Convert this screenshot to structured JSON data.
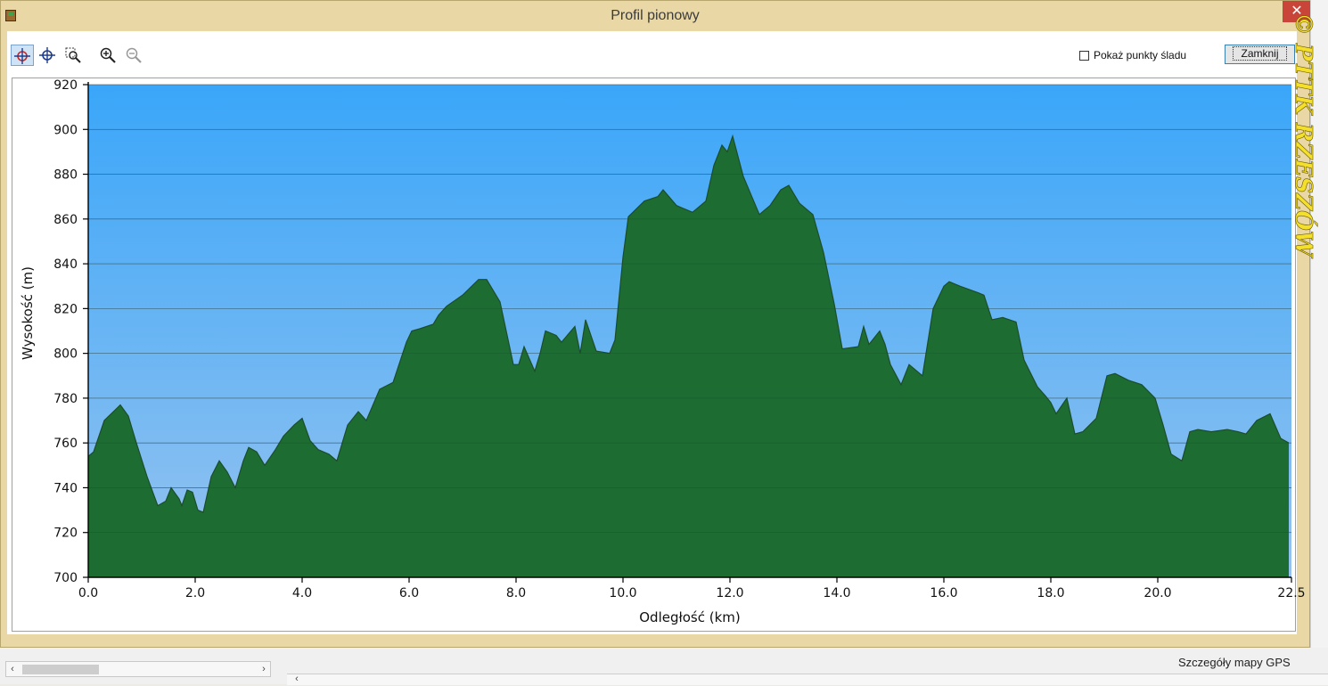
{
  "window": {
    "title": "Profil pionowy",
    "close_glyph": "✕"
  },
  "toolbar": {
    "tools": [
      {
        "name": "crosshair-active-icon",
        "active": true
      },
      {
        "name": "crosshair-icon",
        "active": false
      },
      {
        "name": "zoom-region-icon",
        "active": false
      },
      {
        "name": "zoom-in-icon",
        "active": false
      },
      {
        "name": "zoom-out-icon",
        "active": false
      }
    ],
    "show_track_points_label": "Pokaż punkty śladu",
    "show_track_points_checked": false,
    "close_label": "Zamknij"
  },
  "watermark": {
    "text": "© PTTK RZESZÓW"
  },
  "status": {
    "text": "Szczegóły mapy GPS"
  },
  "scrollbar": {
    "left_arrow": "‹",
    "right_arrow": "›",
    "bottom_left_arrow": "‹"
  },
  "chart_data": {
    "type": "area",
    "xlabel": "Odległość   (km)",
    "ylabel": "Wysokość (m)",
    "xlim": [
      0,
      22.5
    ],
    "ylim": [
      700,
      920
    ],
    "x_ticks": [
      "0.0",
      "2.0",
      "4.0",
      "6.0",
      "8.0",
      "10.0",
      "12.0",
      "14.0",
      "16.0",
      "18.0",
      "20.0",
      "22.5"
    ],
    "y_ticks": [
      "920",
      "900",
      "880",
      "860",
      "840",
      "820",
      "800",
      "780",
      "760",
      "740",
      "720",
      "700"
    ],
    "grid": true,
    "colors": {
      "sky_top": "#3aa6f9",
      "sky_bottom": "#8fc0f0",
      "fill_dark": "#1f6e34",
      "fill_light": "#22a447",
      "outline": "#1c4d2a"
    },
    "x": [
      0.0,
      0.1,
      0.3,
      0.6,
      0.75,
      0.9,
      1.1,
      1.3,
      1.45,
      1.55,
      1.7,
      1.75,
      1.85,
      1.95,
      2.05,
      2.15,
      2.3,
      2.45,
      2.6,
      2.75,
      2.9,
      3.0,
      3.15,
      3.3,
      3.5,
      3.65,
      3.85,
      4.0,
      4.15,
      4.3,
      4.5,
      4.65,
      4.85,
      5.05,
      5.2,
      5.45,
      5.7,
      5.95,
      6.05,
      6.2,
      6.45,
      6.55,
      6.7,
      7.0,
      7.3,
      7.45,
      7.7,
      7.95,
      8.05,
      8.15,
      8.35,
      8.45,
      8.55,
      8.75,
      8.85,
      9.1,
      9.2,
      9.3,
      9.5,
      9.75,
      9.85,
      10.0,
      10.1,
      10.4,
      10.65,
      10.75,
      11.0,
      11.3,
      11.55,
      11.7,
      11.85,
      11.95,
      12.05,
      12.25,
      12.55,
      12.75,
      12.95,
      13.1,
      13.3,
      13.55,
      13.75,
      13.95,
      14.1,
      14.4,
      14.5,
      14.6,
      14.8,
      14.9,
      15.0,
      15.2,
      15.35,
      15.6,
      15.8,
      16.0,
      16.1,
      16.3,
      16.65,
      16.75,
      16.9,
      17.1,
      17.35,
      17.5,
      17.75,
      17.9,
      18.0,
      18.1,
      18.3,
      18.45,
      18.6,
      18.85,
      19.05,
      19.2,
      19.45,
      19.7,
      19.95,
      20.1,
      20.25,
      20.45,
      20.6,
      20.75,
      21.0,
      21.3,
      21.5,
      21.65,
      21.85,
      22.1,
      22.3,
      22.45
    ],
    "y": [
      754,
      756,
      770,
      777,
      772,
      760,
      745,
      732,
      734,
      740,
      735,
      732,
      739,
      738,
      730,
      729,
      745,
      752,
      747,
      740,
      752,
      758,
      756,
      750,
      757,
      763,
      768,
      771,
      761,
      757,
      755,
      752,
      768,
      774,
      770,
      784,
      787,
      805,
      810,
      811,
      813,
      817,
      821,
      826,
      833,
      833,
      823,
      795,
      795,
      803,
      792,
      800,
      810,
      808,
      805,
      812,
      800,
      815,
      801,
      800,
      806,
      843,
      861,
      868,
      870,
      873,
      866,
      863,
      868,
      884,
      893,
      890,
      897,
      879,
      862,
      866,
      873,
      875,
      867,
      862,
      845,
      822,
      802,
      803,
      812,
      804,
      810,
      804,
      795,
      786,
      795,
      790,
      820,
      830,
      832,
      830,
      827,
      826,
      815,
      816,
      814,
      797,
      785,
      781,
      778,
      773,
      780,
      764,
      765,
      771,
      790,
      791,
      788,
      786,
      780,
      768,
      755,
      752,
      765,
      766,
      765,
      766,
      765,
      764,
      770,
      773,
      762,
      760
    ]
  }
}
